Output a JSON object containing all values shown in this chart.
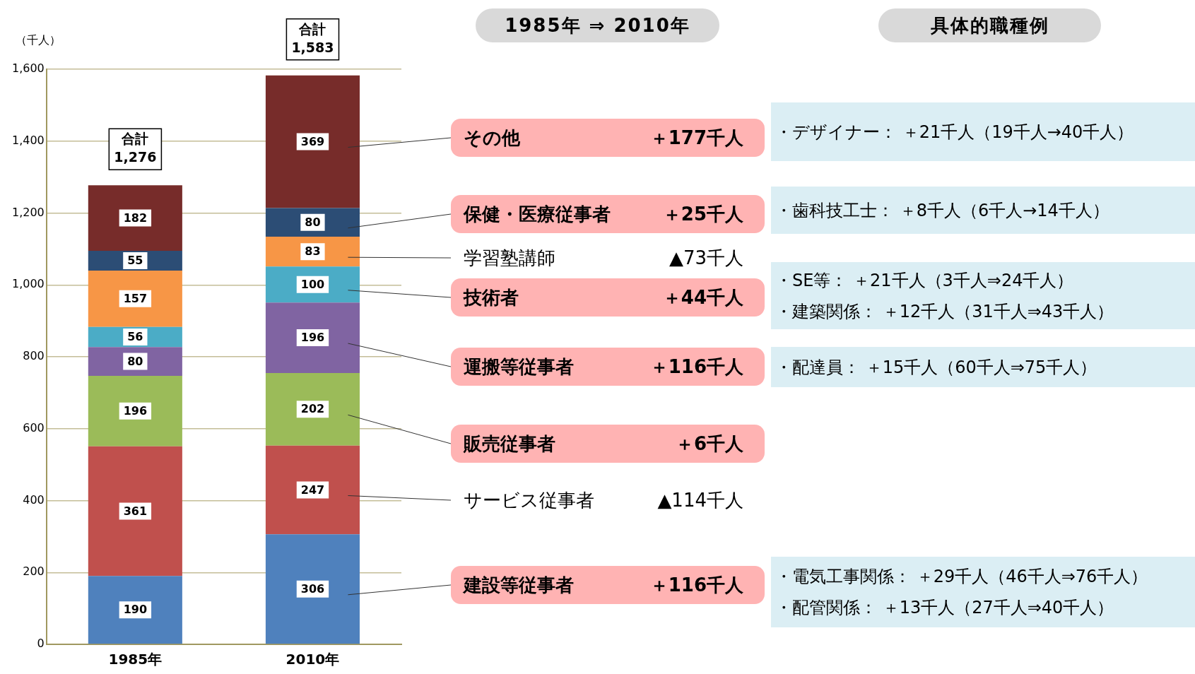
{
  "chart_data": {
    "type": "bar",
    "stacked": true,
    "categories": [
      "1985年",
      "2010年"
    ],
    "series": [
      {
        "name": "建設等従事者",
        "color": "#4f81bd",
        "values": [
          190,
          306
        ]
      },
      {
        "name": "サービス従事者",
        "color": "#c0504d",
        "values": [
          361,
          247
        ]
      },
      {
        "name": "販売従事者",
        "color": "#9bbb59",
        "values": [
          196,
          202
        ]
      },
      {
        "name": "運搬等従事者",
        "color": "#8064a2",
        "values": [
          80,
          196
        ]
      },
      {
        "name": "技術者",
        "color": "#4bacc6",
        "values": [
          56,
          100
        ]
      },
      {
        "name": "学習塾講師",
        "color": "#f79646",
        "values": [
          157,
          83
        ]
      },
      {
        "name": "保健・医療従事者",
        "color": "#2c4d75",
        "values": [
          55,
          80
        ]
      },
      {
        "name": "その他",
        "color": "#772c2a",
        "values": [
          182,
          369
        ]
      }
    ],
    "ylabel": "（千人）",
    "ylim": [
      0,
      1600
    ],
    "yticks": [
      0,
      200,
      400,
      600,
      800,
      {
        "value": 1000,
        "label": "1,000"
      },
      {
        "value": 1200,
        "label": "1,200"
      },
      {
        "value": 1400,
        "label": "1,400"
      },
      {
        "value": 1600,
        "label": "1,600"
      }
    ],
    "grid": "y",
    "legend": false,
    "data_labels": true,
    "totals": [
      "合計\n1,276",
      "合計\n1,583"
    ],
    "annotations": [
      "1985年 ⇒ 2010年",
      "具体的職種例",
      "＋116千人",
      "▲114千人",
      "＋6千人",
      "＋116千人",
      "＋44千人",
      "▲73千人",
      "＋25千人",
      "＋177千人",
      "・デザイナー：  ＋21千人（19千人→40千人）",
      "・歯科技工士：  ＋8千人（6千人→14千人）",
      "・SE等：  ＋21千人（3千人⇒24千人）",
      "・建築関係：  ＋12千人（31千人⇒43千人）",
      "・配達員：  ＋15千人（60千人⇒75千人）",
      "・電気工事関係：  ＋29千人（46千人⇒76千人）",
      "・配管関係：  ＋13千人（27千人⇒40千人）"
    ]
  }
}
